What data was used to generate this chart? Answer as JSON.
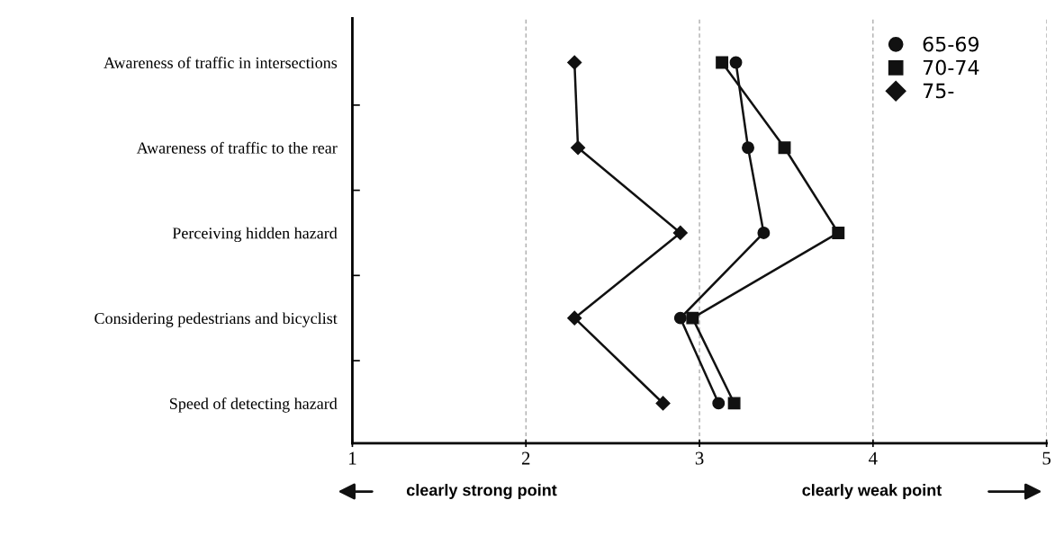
{
  "chart_data": {
    "type": "line",
    "orientation": "horizontal",
    "categories": [
      "Awareness of traffic in intersections",
      "Awareness of traffic to the rear",
      "Perceiving hidden hazard",
      "Considering pedestrians and bicyclist",
      "Speed of detecting hazard"
    ],
    "series": [
      {
        "name": "65-69",
        "color": "#111111",
        "marker": "circle",
        "values": [
          3.21,
          3.28,
          3.37,
          2.89,
          3.11
        ]
      },
      {
        "name": "70-74",
        "color": "#111111",
        "marker": "square",
        "values": [
          3.13,
          3.49,
          3.8,
          2.96,
          3.2
        ]
      },
      {
        "name": "75-",
        "color": "#111111",
        "marker": "diamond",
        "values": [
          2.28,
          2.3,
          2.89,
          2.28,
          2.79
        ]
      }
    ],
    "xlim": [
      1,
      5
    ],
    "xticks": [
      1,
      2,
      3,
      4,
      5
    ],
    "grid": "x",
    "legend": "top right",
    "line_style": "solid",
    "annotations": [
      "clearly strong point",
      "clearly weak point"
    ]
  }
}
